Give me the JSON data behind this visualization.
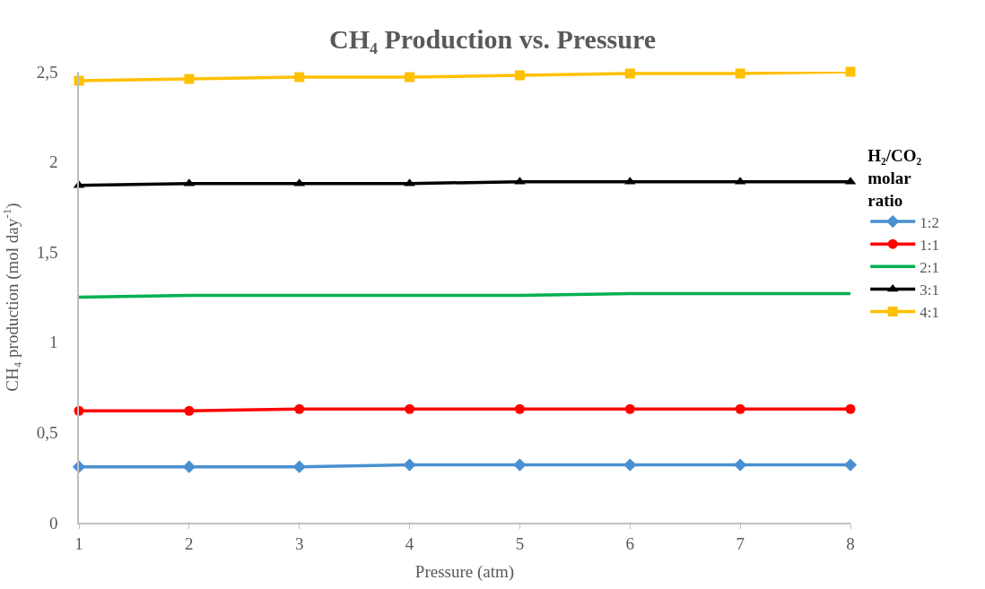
{
  "chart_data": {
    "type": "line",
    "title": "CH₄ Production vs. Pressure",
    "xlabel": "Pressure (atm)",
    "ylabel": "CH₄ production (mol day$^{-1}$)",
    "legend_title": "H₂/CO₂ molar ratio",
    "x": [
      1,
      2,
      3,
      4,
      5,
      6,
      7,
      8
    ],
    "series": [
      {
        "name": "1:2",
        "color": "#4a90d0",
        "marker": "diamond",
        "values": [
          0.31,
          0.31,
          0.31,
          0.32,
          0.32,
          0.32,
          0.32,
          0.32
        ]
      },
      {
        "name": "1:1",
        "color": "#ff0000",
        "marker": "circle",
        "values": [
          0.62,
          0.62,
          0.63,
          0.63,
          0.63,
          0.63,
          0.63,
          0.63
        ]
      },
      {
        "name": "2:1",
        "color": "#00b050",
        "marker": "none",
        "values": [
          1.25,
          1.26,
          1.26,
          1.26,
          1.26,
          1.27,
          1.27,
          1.27
        ]
      },
      {
        "name": "3:1",
        "color": "#000000",
        "marker": "triangle",
        "values": [
          1.87,
          1.88,
          1.88,
          1.88,
          1.89,
          1.89,
          1.89,
          1.89
        ]
      },
      {
        "name": "4:1",
        "color": "#ffc000",
        "marker": "square",
        "values": [
          2.45,
          2.46,
          2.47,
          2.47,
          2.48,
          2.49,
          2.49,
          2.5
        ]
      }
    ],
    "xlim": [
      1,
      8
    ],
    "xticks": [
      1,
      2,
      3,
      4,
      5,
      6,
      7,
      8
    ],
    "ylim": [
      0,
      2.5
    ],
    "yticks": [
      0,
      {
        "value": 0.5,
        "label": "0,5"
      },
      1,
      {
        "value": 1.5,
        "label": "1,5"
      },
      2,
      {
        "value": 2.5,
        "label": "2,5"
      }
    ],
    "legend": "right",
    "line_style": "solid"
  }
}
